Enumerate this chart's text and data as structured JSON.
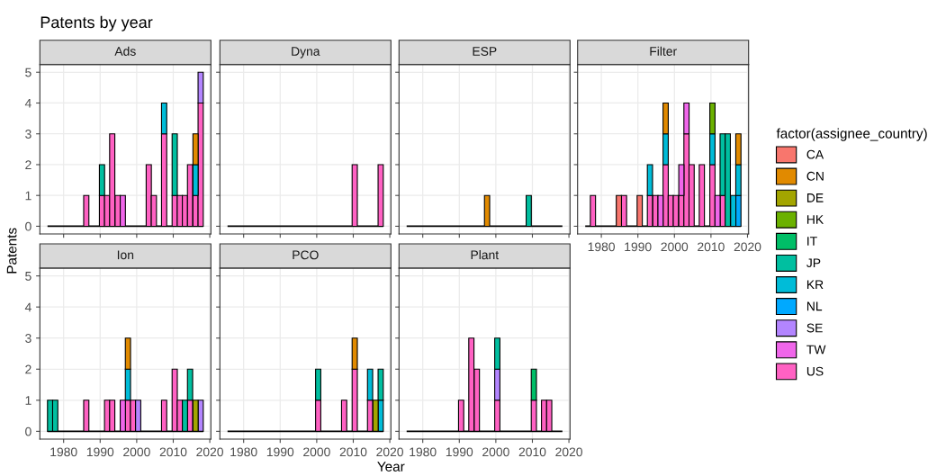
{
  "chart_data": [
    {
      "type": "bar",
      "subtitle": "Ads",
      "title": "Patents by year",
      "ylabel": "Patents",
      "legend_title": "factor(assignee_country)",
      "legend": "right",
      "stacked": true,
      "grid": true,
      "tick_labels": "y",
      "xlim": [
        1973.5,
        2020.3
      ],
      "ylim": [
        -0.25,
        5.25
      ],
      "xticks": [
        1980,
        1990,
        2000,
        2010,
        2020
      ],
      "yticks": [
        0,
        1,
        2,
        3,
        4,
        5
      ],
      "ref_lines": [
        {
          "axis": "y",
          "value": 0,
          "color": "#000000"
        }
      ],
      "x": [
        1976.3,
        1977.7,
        1979.1,
        1980.6,
        1982.0,
        1983.4,
        1984.8,
        1986.2,
        1987.7,
        1989.1,
        1990.5,
        1991.9,
        1993.3,
        1994.8,
        1996.2,
        1997.6,
        1999.0,
        2000.4,
        2001.9,
        2003.3,
        2004.7,
        2006.1,
        2007.5,
        2009.0,
        2010.4,
        2011.8,
        2013.2,
        2014.6,
        2016.1,
        2017.5
      ],
      "series": [
        {
          "name": "US",
          "color": "#ff61c3",
          "values": [
            0,
            0,
            0,
            0,
            0,
            0,
            0,
            1,
            0,
            0,
            1,
            1,
            3,
            1,
            0,
            0,
            0,
            0,
            0,
            2,
            1,
            0,
            3,
            0,
            1,
            1,
            1,
            2,
            1,
            4
          ]
        },
        {
          "name": "TW",
          "color": "#f066ea",
          "values": [
            0,
            0,
            0,
            0,
            0,
            0,
            0,
            0,
            0,
            0,
            0,
            0,
            0,
            0,
            1,
            0,
            0,
            0,
            0,
            0,
            0,
            0,
            0,
            0,
            0,
            0,
            0,
            0,
            0,
            0
          ]
        },
        {
          "name": "SE",
          "color": "#b385ff",
          "values": [
            0,
            0,
            0,
            0,
            0,
            0,
            0,
            0,
            0,
            0,
            0,
            0,
            0,
            0,
            0,
            0,
            0,
            0,
            0,
            0,
            0,
            0,
            0,
            0,
            0,
            0,
            0,
            0,
            0,
            1
          ]
        },
        {
          "name": "NL",
          "color": "#00a9ff",
          "values": [
            0,
            0,
            0,
            0,
            0,
            0,
            0,
            0,
            0,
            0,
            0,
            0,
            0,
            0,
            0,
            0,
            0,
            0,
            0,
            0,
            0,
            0,
            0,
            0,
            0,
            0,
            0,
            0,
            0,
            0
          ]
        },
        {
          "name": "KR",
          "color": "#00bcd8",
          "values": [
            0,
            0,
            0,
            0,
            0,
            0,
            0,
            0,
            0,
            0,
            0,
            0,
            0,
            0,
            0,
            0,
            0,
            0,
            0,
            0,
            0,
            0,
            1,
            0,
            0,
            0,
            0,
            0,
            1,
            0
          ]
        },
        {
          "name": "JP",
          "color": "#00bfa0",
          "values": [
            0,
            0,
            0,
            0,
            0,
            0,
            0,
            0,
            0,
            0,
            1,
            0,
            0,
            0,
            0,
            0,
            0,
            0,
            0,
            0,
            0,
            0,
            0,
            0,
            2,
            0,
            0,
            0,
            0,
            0
          ]
        },
        {
          "name": "IT",
          "color": "#00be67",
          "values": [
            0,
            0,
            0,
            0,
            0,
            0,
            0,
            0,
            0,
            0,
            0,
            0,
            0,
            0,
            0,
            0,
            0,
            0,
            0,
            0,
            0,
            0,
            0,
            0,
            0,
            0,
            0,
            0,
            0,
            0
          ]
        },
        {
          "name": "HK",
          "color": "#6bb100",
          "values": [
            0,
            0,
            0,
            0,
            0,
            0,
            0,
            0,
            0,
            0,
            0,
            0,
            0,
            0,
            0,
            0,
            0,
            0,
            0,
            0,
            0,
            0,
            0,
            0,
            0,
            0,
            0,
            0,
            0,
            0
          ]
        },
        {
          "name": "DE",
          "color": "#a3a500",
          "values": [
            0,
            0,
            0,
            0,
            0,
            0,
            0,
            0,
            0,
            0,
            0,
            0,
            0,
            0,
            0,
            0,
            0,
            0,
            0,
            0,
            0,
            0,
            0,
            0,
            0,
            0,
            0,
            0,
            0,
            0
          ]
        },
        {
          "name": "CN",
          "color": "#e18a00",
          "values": [
            0,
            0,
            0,
            0,
            0,
            0,
            0,
            0,
            0,
            0,
            0,
            0,
            0,
            0,
            0,
            0,
            0,
            0,
            0,
            0,
            0,
            0,
            0,
            0,
            0,
            0,
            0,
            0,
            1,
            0
          ]
        },
        {
          "name": "CA",
          "color": "#f8766d",
          "values": [
            0,
            0,
            0,
            0,
            0,
            0,
            0,
            0,
            0,
            0,
            0,
            0,
            0,
            0,
            0,
            0,
            0,
            0,
            0,
            0,
            0,
            0,
            0,
            0,
            0,
            0,
            0,
            0,
            0,
            0
          ]
        }
      ]
    },
    {
      "type": "bar",
      "subtitle": "Dyna",
      "stacked": true,
      "grid": true,
      "tick_labels": false,
      "xlim": [
        1973.5,
        2020.3
      ],
      "ylim": [
        -0.25,
        5.25
      ],
      "xticks": [
        1980,
        1990,
        2000,
        2010,
        2020
      ],
      "yticks": [
        0,
        1,
        2,
        3,
        4,
        5
      ],
      "ref_lines": [
        {
          "axis": "y",
          "value": 0,
          "color": "#000000"
        }
      ],
      "x": [
        1976.3,
        1977.7,
        1979.1,
        1980.6,
        1982.0,
        1983.4,
        1984.8,
        1986.2,
        1987.7,
        1989.1,
        1990.5,
        1991.9,
        1993.3,
        1994.8,
        1996.2,
        1997.6,
        1999.0,
        2000.4,
        2001.9,
        2003.3,
        2004.7,
        2006.1,
        2007.5,
        2009.0,
        2010.4,
        2011.8,
        2013.2,
        2014.6,
        2016.1,
        2017.5
      ],
      "series": [
        {
          "color": "#ff61c3",
          "values": [
            0,
            0,
            0,
            0,
            0,
            0,
            0,
            0,
            0,
            0,
            0,
            0,
            0,
            0,
            0,
            0,
            0,
            0,
            0,
            0,
            0,
            0,
            0,
            0,
            2,
            0,
            0,
            0,
            0,
            2
          ]
        }
      ]
    },
    {
      "type": "bar",
      "subtitle": "ESP",
      "stacked": true,
      "grid": true,
      "tick_labels": false,
      "xlim": [
        1973.5,
        2020.3
      ],
      "ylim": [
        -0.25,
        5.25
      ],
      "xticks": [
        1980,
        1990,
        2000,
        2010,
        2020
      ],
      "yticks": [
        0,
        1,
        2,
        3,
        4,
        5
      ],
      "ref_lines": [
        {
          "axis": "y",
          "value": 0,
          "color": "#000000"
        }
      ],
      "x": [
        1976.3,
        1977.7,
        1979.1,
        1980.6,
        1982.0,
        1983.4,
        1984.8,
        1986.2,
        1987.7,
        1989.1,
        1990.5,
        1991.9,
        1993.3,
        1994.8,
        1996.2,
        1997.6,
        1999.0,
        2000.4,
        2001.9,
        2003.3,
        2004.7,
        2006.1,
        2007.5,
        2009.0,
        2010.4,
        2011.8,
        2013.2,
        2014.6,
        2016.1,
        2017.5
      ],
      "series": [
        {
          "color": "#00bfa0",
          "values": [
            0,
            0,
            0,
            0,
            0,
            0,
            0,
            0,
            0,
            0,
            0,
            0,
            0,
            0,
            0,
            0,
            0,
            0,
            0,
            0,
            0,
            0,
            0,
            1,
            0,
            0,
            0,
            0,
            0,
            0
          ]
        },
        {
          "color": "#e18a00",
          "values": [
            0,
            0,
            0,
            0,
            0,
            0,
            0,
            0,
            0,
            0,
            0,
            0,
            0,
            0,
            0,
            1,
            0,
            0,
            0,
            0,
            0,
            0,
            0,
            0,
            0,
            0,
            0,
            0,
            0,
            0
          ]
        }
      ]
    },
    {
      "type": "bar",
      "subtitle": "Filter",
      "stacked": true,
      "grid": true,
      "tick_labels": "x",
      "xlim": [
        1973.5,
        2020.3
      ],
      "ylim": [
        -0.25,
        5.25
      ],
      "xticks": [
        1980,
        1990,
        2000,
        2010,
        2020
      ],
      "yticks": [
        0,
        1,
        2,
        3,
        4,
        5
      ],
      "ref_lines": [
        {
          "axis": "y",
          "value": 0,
          "color": "#000000"
        }
      ],
      "x": [
        1976.3,
        1977.7,
        1979.1,
        1980.6,
        1982.0,
        1983.4,
        1984.8,
        1986.2,
        1987.7,
        1989.1,
        1990.5,
        1991.9,
        1993.3,
        1994.8,
        1996.2,
        1997.6,
        1999.0,
        2000.4,
        2001.9,
        2003.3,
        2004.7,
        2006.1,
        2007.5,
        2009.0,
        2010.4,
        2011.8,
        2013.2,
        2014.6,
        2016.1,
        2017.5
      ],
      "series": [
        {
          "color": "#ff61c3",
          "values": [
            0,
            1,
            0,
            0,
            0,
            0,
            0,
            1,
            0,
            0,
            0,
            0,
            1,
            1,
            0,
            2,
            1,
            1,
            1,
            3,
            2,
            0,
            2,
            0,
            2,
            0,
            1,
            0,
            0,
            0
          ]
        },
        {
          "color": "#f066ea",
          "values": [
            0,
            0,
            0,
            0,
            0,
            0,
            0,
            0,
            0,
            0,
            0,
            0,
            0,
            0,
            1,
            0,
            0,
            0,
            1,
            1,
            0,
            0,
            0,
            0,
            0,
            1,
            0,
            0,
            0,
            0
          ]
        },
        {
          "color": "#00a9ff",
          "values": [
            0,
            0,
            0,
            0,
            0,
            0,
            0,
            0,
            0,
            0,
            0,
            0,
            0,
            0,
            0,
            0,
            0,
            0,
            0,
            0,
            0,
            0,
            0,
            0,
            0,
            0,
            0,
            0,
            0,
            1
          ]
        },
        {
          "color": "#00bcd8",
          "values": [
            0,
            0,
            0,
            0,
            0,
            0,
            0,
            0,
            0,
            0,
            0,
            0,
            1,
            0,
            0,
            1,
            0,
            0,
            0,
            0,
            0,
            0,
            0,
            0,
            1,
            0,
            0,
            0,
            1,
            1
          ]
        },
        {
          "color": "#00bfa0",
          "values": [
            0,
            0,
            0,
            0,
            0,
            0,
            0,
            0,
            0,
            0,
            0,
            0,
            0,
            0,
            0,
            0,
            0,
            0,
            0,
            0,
            0,
            0,
            0,
            0,
            0,
            0,
            2,
            3,
            0,
            0
          ]
        },
        {
          "color": "#6bb100",
          "values": [
            0,
            0,
            0,
            0,
            0,
            0,
            0,
            0,
            0,
            0,
            0,
            0,
            0,
            0,
            0,
            0,
            0,
            0,
            0,
            0,
            0,
            0,
            0,
            0,
            1,
            0,
            0,
            0,
            0,
            0
          ]
        },
        {
          "color": "#e18a00",
          "values": [
            0,
            0,
            0,
            0,
            0,
            0,
            0,
            0,
            0,
            0,
            0,
            0,
            0,
            0,
            0,
            1,
            0,
            0,
            0,
            0,
            0,
            0,
            0,
            0,
            0,
            0,
            0,
            0,
            0,
            1
          ]
        },
        {
          "color": "#f8766d",
          "values": [
            0,
            0,
            0,
            0,
            0,
            0,
            1,
            0,
            0,
            0,
            1,
            0,
            0,
            0,
            0,
            0,
            0,
            0,
            0,
            0,
            0,
            0,
            0,
            0,
            0,
            0,
            0,
            0,
            0,
            0
          ]
        }
      ]
    },
    {
      "type": "bar",
      "subtitle": "Ion",
      "stacked": true,
      "grid": true,
      "xlim": [
        1973.5,
        2020.3
      ],
      "ylim": [
        -0.25,
        5.25
      ],
      "xticks": [
        1980,
        1990,
        2000,
        2010,
        2020
      ],
      "yticks": [
        0,
        1,
        2,
        3,
        4,
        5
      ],
      "ref_lines": [
        {
          "axis": "y",
          "value": 0,
          "color": "#000000"
        }
      ],
      "x": [
        1976.3,
        1977.7,
        1979.1,
        1980.6,
        1982.0,
        1983.4,
        1984.8,
        1986.2,
        1987.7,
        1989.1,
        1990.5,
        1991.9,
        1993.3,
        1994.8,
        1996.2,
        1997.6,
        1999.0,
        2000.4,
        2001.9,
        2003.3,
        2004.7,
        2006.1,
        2007.5,
        2009.0,
        2010.4,
        2011.8,
        2013.2,
        2014.6,
        2016.1,
        2017.5
      ],
      "series": [
        {
          "color": "#ff61c3",
          "values": [
            0,
            0,
            0,
            0,
            0,
            0,
            0,
            1,
            0,
            0,
            0,
            1,
            1,
            0,
            0,
            1,
            1,
            0,
            0,
            0,
            0,
            0,
            1,
            0,
            2,
            1,
            0,
            1,
            0,
            0
          ]
        },
        {
          "color": "#f066ea",
          "values": [
            0,
            0,
            0,
            0,
            0,
            0,
            0,
            0,
            0,
            0,
            0,
            0,
            0,
            0,
            1,
            0,
            0,
            0,
            0,
            0,
            0,
            0,
            0,
            0,
            0,
            0,
            0,
            0,
            0,
            0
          ]
        },
        {
          "color": "#b385ff",
          "values": [
            0,
            0,
            0,
            0,
            0,
            0,
            0,
            0,
            0,
            0,
            0,
            0,
            0,
            0,
            0,
            0,
            0,
            1,
            0,
            0,
            0,
            0,
            0,
            0,
            0,
            0,
            0,
            0,
            0,
            1
          ]
        },
        {
          "color": "#00bcd8",
          "values": [
            0,
            0,
            0,
            0,
            0,
            0,
            0,
            0,
            0,
            0,
            0,
            0,
            0,
            0,
            0,
            1,
            0,
            0,
            0,
            0,
            0,
            0,
            0,
            0,
            0,
            0,
            0,
            0,
            0,
            0
          ]
        },
        {
          "color": "#00bfa0",
          "values": [
            1,
            1,
            0,
            0,
            0,
            0,
            0,
            0,
            0,
            0,
            0,
            0,
            0,
            0,
            0,
            0,
            0,
            0,
            0,
            0,
            0,
            0,
            0,
            0,
            0,
            0,
            1,
            1,
            0,
            0
          ]
        },
        {
          "color": "#a3a500",
          "values": [
            0,
            0,
            0,
            0,
            0,
            0,
            0,
            0,
            0,
            0,
            0,
            0,
            0,
            0,
            0,
            0,
            0,
            0,
            0,
            0,
            0,
            0,
            0,
            0,
            0,
            0,
            0,
            0,
            1,
            0
          ]
        },
        {
          "color": "#e18a00",
          "values": [
            0,
            0,
            0,
            0,
            0,
            0,
            0,
            0,
            0,
            0,
            0,
            0,
            0,
            0,
            0,
            1,
            0,
            0,
            0,
            0,
            0,
            0,
            0,
            0,
            0,
            0,
            0,
            0,
            0,
            0
          ]
        }
      ]
    },
    {
      "type": "bar",
      "subtitle": "PCO",
      "xlabel": "Year",
      "stacked": true,
      "grid": true,
      "tick_labels": "x",
      "xlim": [
        1973.5,
        2020.3
      ],
      "ylim": [
        -0.25,
        5.25
      ],
      "xticks": [
        1980,
        1990,
        2000,
        2010,
        2020
      ],
      "yticks": [
        0,
        1,
        2,
        3,
        4,
        5
      ],
      "ref_lines": [
        {
          "axis": "y",
          "value": 0,
          "color": "#000000"
        }
      ],
      "x": [
        1976.3,
        1977.7,
        1979.1,
        1980.6,
        1982.0,
        1983.4,
        1984.8,
        1986.2,
        1987.7,
        1989.1,
        1990.5,
        1991.9,
        1993.3,
        1994.8,
        1996.2,
        1997.6,
        1999.0,
        2000.4,
        2001.9,
        2003.3,
        2004.7,
        2006.1,
        2007.5,
        2009.0,
        2010.4,
        2011.8,
        2013.2,
        2014.6,
        2016.1,
        2017.5
      ],
      "series": [
        {
          "color": "#ff61c3",
          "values": [
            0,
            0,
            0,
            0,
            0,
            0,
            0,
            0,
            0,
            0,
            0,
            0,
            0,
            0,
            0,
            0,
            0,
            1,
            0,
            0,
            0,
            0,
            1,
            0,
            2,
            0,
            0,
            1,
            0,
            0
          ]
        },
        {
          "color": "#00bcd8",
          "values": [
            0,
            0,
            0,
            0,
            0,
            0,
            0,
            0,
            0,
            0,
            0,
            0,
            0,
            0,
            0,
            0,
            0,
            0,
            0,
            0,
            0,
            0,
            0,
            0,
            0,
            0,
            0,
            1,
            0,
            1
          ]
        },
        {
          "color": "#00bfa0",
          "values": [
            0,
            0,
            0,
            0,
            0,
            0,
            0,
            0,
            0,
            0,
            0,
            0,
            0,
            0,
            0,
            0,
            0,
            1,
            0,
            0,
            0,
            0,
            0,
            0,
            0,
            0,
            0,
            0,
            0,
            1
          ]
        },
        {
          "color": "#a3a500",
          "values": [
            0,
            0,
            0,
            0,
            0,
            0,
            0,
            0,
            0,
            0,
            0,
            0,
            0,
            0,
            0,
            0,
            0,
            0,
            0,
            0,
            0,
            0,
            0,
            0,
            0,
            0,
            0,
            0,
            1,
            0
          ]
        },
        {
          "color": "#e18a00",
          "values": [
            0,
            0,
            0,
            0,
            0,
            0,
            0,
            0,
            0,
            0,
            0,
            0,
            0,
            0,
            0,
            0,
            0,
            0,
            0,
            0,
            0,
            0,
            0,
            0,
            1,
            0,
            0,
            0,
            0,
            0
          ]
        }
      ]
    },
    {
      "type": "bar",
      "subtitle": "Plant",
      "stacked": true,
      "grid": true,
      "tick_labels": "x",
      "xlim": [
        1973.5,
        2020.3
      ],
      "ylim": [
        -0.25,
        5.25
      ],
      "xticks": [
        1980,
        1990,
        2000,
        2010,
        2020
      ],
      "yticks": [
        0,
        1,
        2,
        3,
        4,
        5
      ],
      "ref_lines": [
        {
          "axis": "y",
          "value": 0,
          "color": "#000000"
        }
      ],
      "x": [
        1976.3,
        1977.7,
        1979.1,
        1980.6,
        1982.0,
        1983.4,
        1984.8,
        1986.2,
        1987.7,
        1989.1,
        1990.5,
        1991.9,
        1993.3,
        1994.8,
        1996.2,
        1997.6,
        1999.0,
        2000.4,
        2001.9,
        2003.3,
        2004.7,
        2006.1,
        2007.5,
        2009.0,
        2010.4,
        2011.8,
        2013.2,
        2014.6,
        2016.1,
        2017.5
      ],
      "series": [
        {
          "color": "#ff61c3",
          "values": [
            0,
            0,
            0,
            0,
            0,
            0,
            0,
            0,
            0,
            0,
            1,
            0,
            3,
            2,
            0,
            0,
            0,
            1,
            0,
            0,
            0,
            0,
            0,
            0,
            1,
            0,
            1,
            1,
            0,
            0
          ]
        },
        {
          "color": "#b385ff",
          "values": [
            0,
            0,
            0,
            0,
            0,
            0,
            0,
            0,
            0,
            0,
            0,
            0,
            0,
            0,
            0,
            0,
            0,
            1,
            0,
            0,
            0,
            0,
            0,
            0,
            0,
            0,
            0,
            0,
            0,
            0
          ]
        },
        {
          "color": "#00bfa0",
          "values": [
            0,
            0,
            0,
            0,
            0,
            0,
            0,
            0,
            0,
            0,
            0,
            0,
            0,
            0,
            0,
            0,
            0,
            1,
            0,
            0,
            0,
            0,
            0,
            0,
            0,
            0,
            0,
            0,
            0,
            0
          ]
        },
        {
          "color": "#00be67",
          "values": [
            0,
            0,
            0,
            0,
            0,
            0,
            0,
            0,
            0,
            0,
            0,
            0,
            0,
            0,
            0,
            0,
            0,
            0,
            0,
            0,
            0,
            0,
            0,
            0,
            1,
            0,
            0,
            0,
            0,
            0
          ]
        }
      ]
    }
  ]
}
